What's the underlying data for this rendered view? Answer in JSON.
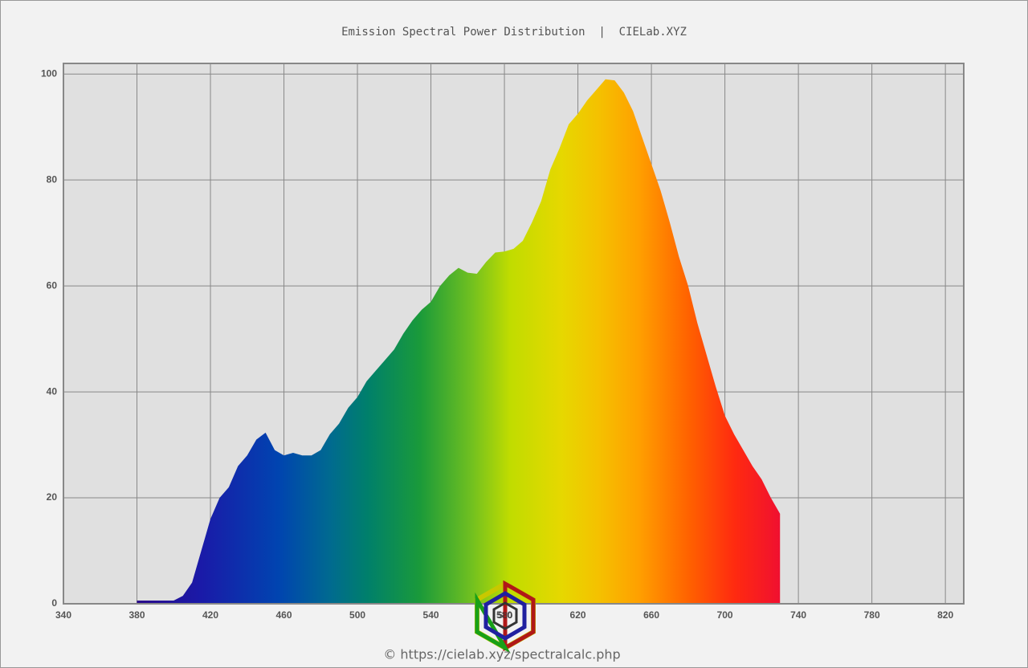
{
  "chart_data": {
    "type": "area",
    "title": "Emission Spectral Power Distribution  |  CIELab.XYZ",
    "footer": "© https://cielab.xyz/spectralcalc.php",
    "logo_text": "580",
    "x": [
      380,
      385,
      390,
      395,
      400,
      405,
      410,
      415,
      420,
      425,
      430,
      435,
      440,
      445,
      450,
      455,
      460,
      465,
      470,
      475,
      480,
      485,
      490,
      495,
      500,
      505,
      510,
      515,
      520,
      525,
      530,
      535,
      540,
      545,
      550,
      555,
      560,
      565,
      570,
      575,
      580,
      585,
      590,
      595,
      600,
      605,
      610,
      615,
      620,
      625,
      630,
      635,
      640,
      645,
      650,
      655,
      660,
      665,
      670,
      675,
      680,
      685,
      690,
      695,
      700,
      705,
      710,
      715,
      720,
      725,
      730
    ],
    "values": [
      0.6,
      0.6,
      0.6,
      0.6,
      0.6,
      1.5,
      4,
      10,
      16,
      20,
      22,
      26,
      28,
      31,
      32.3,
      29,
      28,
      28.5,
      28,
      28,
      29,
      32,
      34,
      37,
      39,
      42,
      44,
      46,
      48,
      51,
      53.5,
      55.5,
      57,
      60,
      62,
      63.4,
      62.5,
      62.3,
      64.5,
      66.3,
      66.5,
      67,
      68.5,
      72,
      76,
      82,
      86,
      90.5,
      92.5,
      95,
      97,
      99,
      98.8,
      96.5,
      93,
      88,
      83,
      78,
      72,
      65.5,
      60,
      53,
      47,
      41,
      35.5,
      32,
      29,
      26,
      23.5,
      20,
      17
    ],
    "xlim": [
      340,
      830
    ],
    "xticks": [
      340,
      380,
      420,
      460,
      500,
      540,
      580,
      620,
      660,
      700,
      740,
      780,
      820
    ],
    "ylim": [
      0,
      102
    ],
    "yticks": [
      0,
      20,
      40,
      60,
      80,
      100
    ],
    "grid": true
  }
}
